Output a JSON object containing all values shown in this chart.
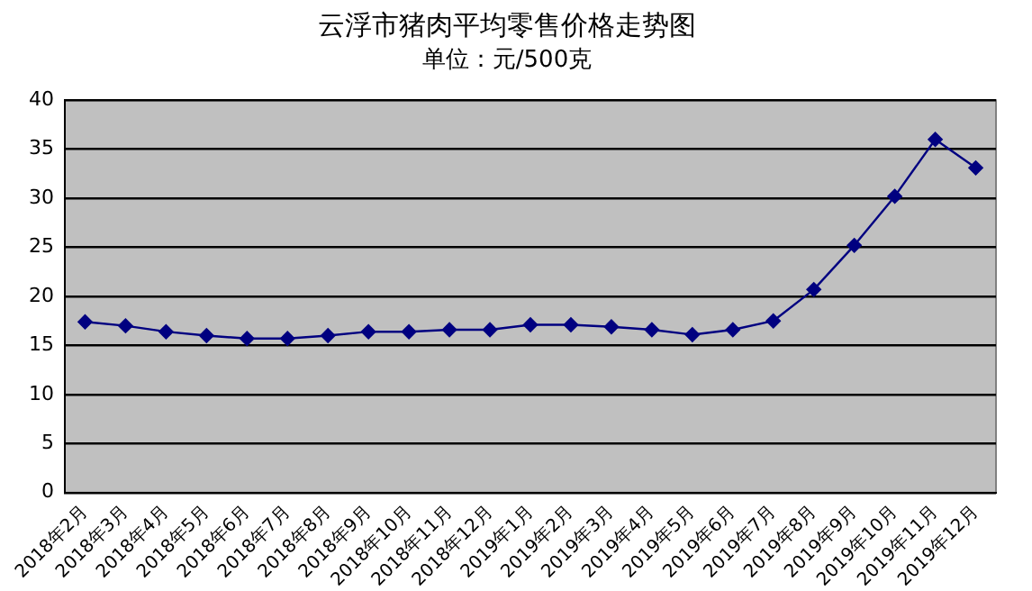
{
  "chart_data": {
    "type": "line",
    "title": "云浮市猪肉平均零售价格走势图",
    "subtitle": "单位：元/500克",
    "categories": [
      "2018年2月",
      "2018年3月",
      "2018年4月",
      "2018年5月",
      "2018年6月",
      "2018年7月",
      "2018年8月",
      "2018年9月",
      "2018年10月",
      "2018年11月",
      "2018年12月",
      "2019年1月",
      "2019年2月",
      "2019年3月",
      "2019年4月",
      "2019年5月",
      "2019年6月",
      "2019年7月",
      "2019年8月",
      "2019年9月",
      "2019年10月",
      "2019年11月",
      "2019年12月"
    ],
    "series": [
      {
        "color": "#000080",
        "values": [
          17.4,
          17.0,
          16.4,
          16.0,
          15.7,
          15.7,
          16.0,
          16.4,
          16.4,
          16.6,
          16.6,
          17.1,
          17.1,
          16.9,
          16.6,
          16.1,
          16.6,
          17.5,
          20.7,
          25.2,
          30.2,
          36.0,
          33.1
        ]
      }
    ],
    "ylim": [
      0,
      40
    ],
    "yticks": [
      0,
      5,
      10,
      15,
      20,
      25,
      30,
      35,
      40
    ],
    "grid": "y",
    "legend": false,
    "marker": "diamond",
    "line_style": "solid"
  }
}
